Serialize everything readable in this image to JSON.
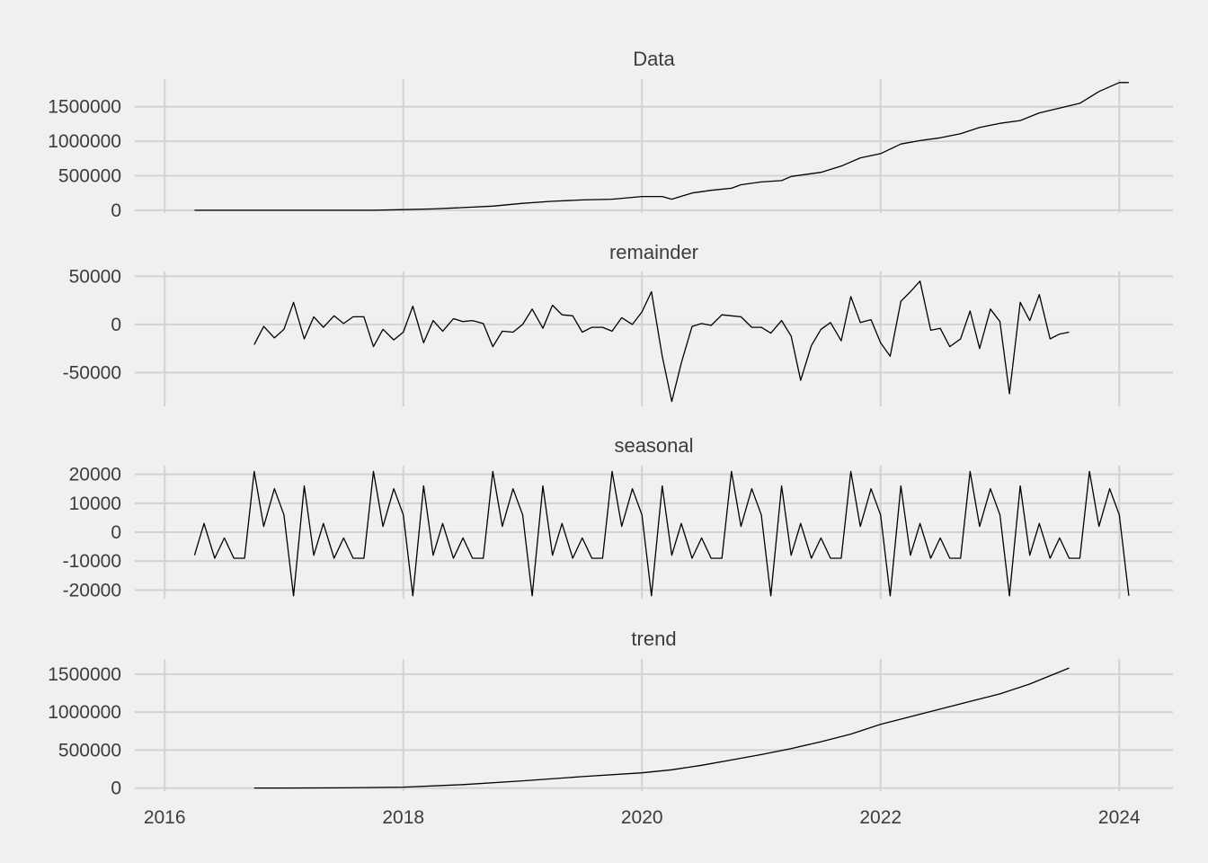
{
  "chart_data": {
    "type": "line",
    "layout": "stacked-facets",
    "shared_x_axis": {
      "label": "",
      "range": [
        2015.75,
        2024.45
      ],
      "ticks": [
        2016,
        2018,
        2020,
        2022,
        2024
      ],
      "tick_labels": [
        "2016",
        "2018",
        "2020",
        "2022",
        "2024"
      ]
    },
    "grid": true,
    "background": "#f0f0f0",
    "line_color": "#000000",
    "grid_color": "#d2d2d2",
    "panels": [
      {
        "title": "Data",
        "ylim": [
          -40000,
          1900000
        ],
        "y_ticks": [
          0,
          500000,
          1000000,
          1500000
        ],
        "y_tick_labels": [
          "0",
          "500000",
          "1000000",
          "1500000"
        ],
        "series": [
          {
            "x": [
              2016.25,
              2016.5,
              2016.75,
              2017,
              2017.25,
              2017.5,
              2017.75,
              2018,
              2018.25,
              2018.5,
              2018.75,
              2019,
              2019.25,
              2019.5,
              2019.75,
              2020,
              2020.17,
              2020.25,
              2020.42,
              2020.58,
              2020.75,
              2020.83,
              2021,
              2021.17,
              2021.25,
              2021.5,
              2021.67,
              2021.83,
              2022,
              2022.17,
              2022.33,
              2022.5,
              2022.67,
              2022.83,
              2023,
              2023.17,
              2023.33,
              2023.5,
              2023.67,
              2023.83,
              2024,
              2024.08
            ],
            "y": [
              0,
              0,
              0,
              0,
              0,
              0,
              0,
              10000,
              20000,
              40000,
              60000,
              100000,
              130000,
              150000,
              160000,
              200000,
              200000,
              160000,
              250000,
              290000,
              320000,
              370000,
              410000,
              430000,
              490000,
              550000,
              640000,
              760000,
              820000,
              960000,
              1010000,
              1050000,
              1110000,
              1200000,
              1260000,
              1300000,
              1410000,
              1480000,
              1550000,
              1720000,
              1850000,
              1850000
            ]
          }
        ]
      },
      {
        "title": "remainder",
        "ylim": [
          -85000,
          55000
        ],
        "y_ticks": [
          -50000,
          0,
          50000
        ],
        "y_tick_labels": [
          "-50000",
          "0",
          "50000"
        ],
        "series": [
          {
            "x": [
              2016.75,
              2016.83,
              2016.92,
              2017,
              2017.08,
              2017.17,
              2017.25,
              2017.33,
              2017.42,
              2017.5,
              2017.58,
              2017.67,
              2017.75,
              2017.83,
              2017.92,
              2018,
              2018.08,
              2018.17,
              2018.25,
              2018.33,
              2018.42,
              2018.5,
              2018.58,
              2018.67,
              2018.75,
              2018.83,
              2018.92,
              2019,
              2019.08,
              2019.17,
              2019.25,
              2019.33,
              2019.42,
              2019.5,
              2019.58,
              2019.67,
              2019.75,
              2019.83,
              2019.92,
              2020,
              2020.08,
              2020.17,
              2020.25,
              2020.33,
              2020.42,
              2020.5,
              2020.58,
              2020.67,
              2020.75,
              2020.83,
              2020.92,
              2021,
              2021.08,
              2021.17,
              2021.25,
              2021.33,
              2021.42,
              2021.5,
              2021.58,
              2021.67,
              2021.75,
              2021.83,
              2021.92,
              2022,
              2022.08,
              2022.17,
              2022.25,
              2022.33,
              2022.42,
              2022.5,
              2022.58,
              2022.67,
              2022.75,
              2022.83,
              2022.92,
              2023,
              2023.08,
              2023.17,
              2023.25,
              2023.33,
              2023.42,
              2023.5,
              2023.58
            ],
            "y": [
              -21000,
              -2000,
              -14000,
              -5000,
              23000,
              -15000,
              8000,
              -3000,
              9000,
              1000,
              8000,
              8000,
              -23000,
              -5000,
              -16000,
              -8000,
              19000,
              -19000,
              4000,
              -7000,
              6000,
              3000,
              4000,
              1000,
              -23000,
              -7000,
              -8000,
              0,
              16000,
              -4000,
              20000,
              10000,
              9000,
              -8000,
              -3000,
              -3000,
              -7000,
              7000,
              0,
              13000,
              34000,
              -33000,
              -80000,
              -40000,
              -2000,
              1000,
              -1000,
              10000,
              9000,
              8000,
              -3000,
              -3000,
              -9000,
              4000,
              -12000,
              -58000,
              -22000,
              -5000,
              2000,
              -17000,
              29000,
              2000,
              5000,
              -19000,
              -33000,
              24000,
              34000,
              45000,
              -6000,
              -4000,
              -23000,
              -15000,
              14000,
              -25000,
              16000,
              3000,
              -72000,
              23000,
              4000,
              31000,
              -15000,
              -10000,
              -8000
            ]
          }
        ]
      },
      {
        "title": "seasonal",
        "ylim": [
          -23000,
          23000
        ],
        "y_ticks": [
          -20000,
          -10000,
          0,
          10000,
          20000
        ],
        "y_tick_labels": [
          "-20000",
          "-10000",
          "0",
          "10000",
          "20000"
        ],
        "series": [
          {
            "x": [
              2016.25,
              2016.33,
              2016.42,
              2016.5,
              2016.58,
              2016.67,
              2016.75,
              2016.83,
              2016.92,
              2017,
              2017.08,
              2017.17,
              2017.25,
              2017.33,
              2017.42,
              2017.5,
              2017.58,
              2017.67,
              2017.75,
              2017.83,
              2017.92,
              2018,
              2018.08,
              2018.17,
              2018.25,
              2018.33,
              2018.42,
              2018.5,
              2018.58,
              2018.67,
              2018.75,
              2018.83,
              2018.92,
              2019,
              2019.08,
              2019.17,
              2019.25,
              2019.33,
              2019.42,
              2019.5,
              2019.58,
              2019.67,
              2019.75,
              2019.83,
              2019.92,
              2020,
              2020.08,
              2020.17,
              2020.25,
              2020.33,
              2020.42,
              2020.5,
              2020.58,
              2020.67,
              2020.75,
              2020.83,
              2020.92,
              2021,
              2021.08,
              2021.17,
              2021.25,
              2021.33,
              2021.42,
              2021.5,
              2021.58,
              2021.67,
              2021.75,
              2021.83,
              2021.92,
              2022,
              2022.08,
              2022.17,
              2022.25,
              2022.33,
              2022.42,
              2022.5,
              2022.58,
              2022.67,
              2022.75,
              2022.83,
              2022.92,
              2023,
              2023.08,
              2023.17,
              2023.25,
              2023.33,
              2023.42,
              2023.5,
              2023.58,
              2023.67,
              2023.75,
              2023.83,
              2023.92,
              2024,
              2024.08
            ],
            "y": [
              -8000,
              3000,
              -9000,
              -2000,
              -9000,
              -9000,
              21000,
              2000,
              15000,
              6000,
              -22000,
              16000,
              -8000,
              3000,
              -9000,
              -2000,
              -9000,
              -9000,
              21000,
              2000,
              15000,
              6000,
              -22000,
              16000,
              -8000,
              3000,
              -9000,
              -2000,
              -9000,
              -9000,
              21000,
              2000,
              15000,
              6000,
              -22000,
              16000,
              -8000,
              3000,
              -9000,
              -2000,
              -9000,
              -9000,
              21000,
              2000,
              15000,
              6000,
              -22000,
              16000,
              -8000,
              3000,
              -9000,
              -2000,
              -9000,
              -9000,
              21000,
              2000,
              15000,
              6000,
              -22000,
              16000,
              -8000,
              3000,
              -9000,
              -2000,
              -9000,
              -9000,
              21000,
              2000,
              15000,
              6000,
              -22000,
              16000,
              -8000,
              3000,
              -9000,
              -2000,
              -9000,
              -9000,
              21000,
              2000,
              15000,
              6000,
              -22000,
              16000,
              -8000,
              3000,
              -9000,
              -2000,
              -9000,
              -9000,
              21000,
              2000,
              15000,
              6000,
              -22000
            ]
          }
        ]
      },
      {
        "title": "trend",
        "ylim": [
          -40000,
          1700000
        ],
        "y_ticks": [
          0,
          500000,
          1000000,
          1500000
        ],
        "y_tick_labels": [
          "0",
          "500000",
          "1000000",
          "1500000"
        ],
        "series": [
          {
            "x": [
              2016.75,
              2017,
              2017.5,
              2018,
              2018.5,
              2019,
              2019.5,
              2020,
              2020.25,
              2020.5,
              2020.75,
              2021,
              2021.25,
              2021.5,
              2021.75,
              2022,
              2022.25,
              2022.5,
              2022.75,
              2023,
              2023.25,
              2023.58
            ],
            "y": [
              0,
              0,
              3000,
              12000,
              45000,
              95000,
              150000,
              200000,
              240000,
              300000,
              370000,
              440000,
              520000,
              610000,
              710000,
              840000,
              940000,
              1040000,
              1140000,
              1240000,
              1370000,
              1580000
            ]
          }
        ]
      }
    ]
  }
}
